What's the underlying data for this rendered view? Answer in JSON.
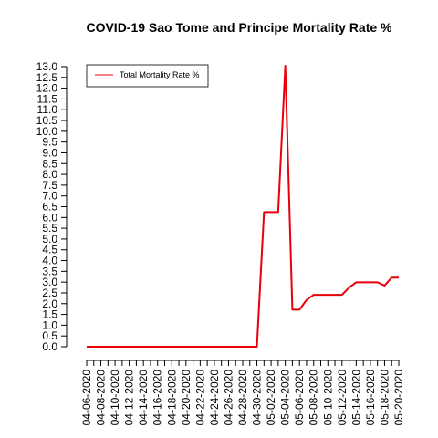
{
  "chart_data": {
    "type": "line",
    "title": "COVID-19 Sao Tome and Principe Mortality Rate %",
    "xlabel": "",
    "ylabel": "",
    "ylim": [
      0,
      13
    ],
    "y_ticks": [
      "0.0",
      "0.5",
      "1.0",
      "1.5",
      "2.0",
      "2.5",
      "3.0",
      "3.5",
      "4.0",
      "4.5",
      "5.0",
      "5.5",
      "6.0",
      "6.5",
      "7.0",
      "7.5",
      "8.0",
      "8.5",
      "9.0",
      "9.5",
      "10.0",
      "10.5",
      "11.0",
      "11.5",
      "12.0",
      "12.5",
      "13.0"
    ],
    "x_tick_labels": [
      "04-06-2020",
      "04-08-2020",
      "04-10-2020",
      "04-12-2020",
      "04-14-2020",
      "04-16-2020",
      "04-18-2020",
      "04-20-2020",
      "04-22-2020",
      "04-24-2020",
      "04-26-2020",
      "04-28-2020",
      "04-30-2020",
      "05-02-2020",
      "05-04-2020",
      "05-06-2020",
      "05-08-2020",
      "05-10-2020",
      "05-12-2020",
      "05-14-2020",
      "05-16-2020",
      "05-18-2020",
      "05-20-2020"
    ],
    "grid": false,
    "legend_position": "top-left",
    "series": [
      {
        "name": "Total Mortality Rate %",
        "color": "#e8000b",
        "x": [
          "04-06-2020",
          "04-07-2020",
          "04-08-2020",
          "04-09-2020",
          "04-10-2020",
          "04-11-2020",
          "04-12-2020",
          "04-13-2020",
          "04-14-2020",
          "04-15-2020",
          "04-16-2020",
          "04-17-2020",
          "04-18-2020",
          "04-19-2020",
          "04-20-2020",
          "04-21-2020",
          "04-22-2020",
          "04-23-2020",
          "04-24-2020",
          "04-25-2020",
          "04-26-2020",
          "04-27-2020",
          "04-28-2020",
          "04-29-2020",
          "04-30-2020",
          "05-01-2020",
          "05-02-2020",
          "05-03-2020",
          "05-04-2020",
          "05-05-2020",
          "05-06-2020",
          "05-07-2020",
          "05-08-2020",
          "05-09-2020",
          "05-10-2020",
          "05-11-2020",
          "05-12-2020",
          "05-13-2020",
          "05-14-2020",
          "05-15-2020",
          "05-16-2020",
          "05-17-2020",
          "05-18-2020",
          "05-19-2020",
          "05-20-2020"
        ],
        "values": [
          0,
          0,
          0,
          0,
          0,
          0,
          0,
          0,
          0,
          0,
          0,
          0,
          0,
          0,
          0,
          0,
          0,
          0,
          0,
          0,
          0,
          0,
          0,
          0,
          0,
          6.25,
          6.25,
          6.25,
          13.04,
          1.72,
          1.72,
          2.17,
          2.41,
          2.41,
          2.41,
          2.41,
          2.41,
          2.75,
          2.99,
          2.99,
          2.99,
          2.99,
          2.84,
          3.21,
          3.21
        ]
      }
    ]
  }
}
